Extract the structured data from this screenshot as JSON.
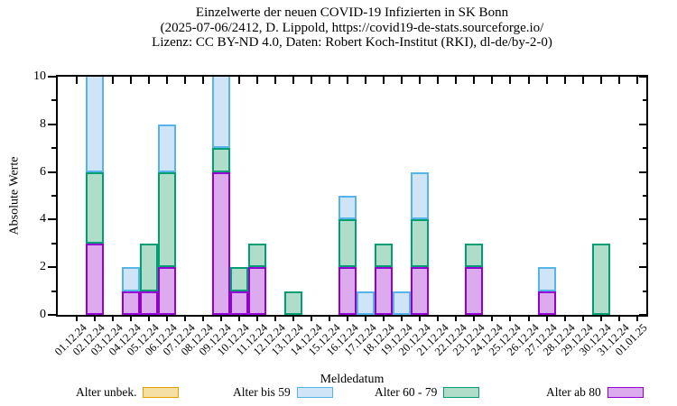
{
  "title": {
    "line1": "Einzelwerte der neuen COVID-19 Infizierten in SK Bonn",
    "line2": "(2025-07-06/2412, D. Lippold, https://covid19-de-stats.sourceforge.io/",
    "line3": "Lizenz: CC BY-ND 4.0, Daten: Robert Koch-Institut (RKI), dl-de/by-2-0)"
  },
  "chart_data": {
    "type": "bar",
    "stacked": true,
    "title": "Einzelwerte der neuen COVID-19 Infizierten in SK Bonn",
    "xlabel": "Meldedatum",
    "ylabel": "Absolute Werte",
    "ylim": [
      0,
      10
    ],
    "y_major_ticks": [
      0,
      2,
      4,
      6,
      8,
      10
    ],
    "y_minor_ticks": [
      1,
      3,
      5,
      7,
      9
    ],
    "grid": false,
    "legend_position": "bottom",
    "categories": [
      "01.12.24",
      "02.12.24",
      "03.12.24",
      "04.12.24",
      "05.12.24",
      "06.12.24",
      "07.12.24",
      "08.12.24",
      "09.12.24",
      "10.12.24",
      "11.12.24",
      "12.12.24",
      "13.12.24",
      "14.12.24",
      "15.12.24",
      "16.12.24",
      "17.12.24",
      "18.12.24",
      "19.12.24",
      "20.12.24",
      "21.12.24",
      "22.12.24",
      "23.12.24",
      "24.12.24",
      "25.12.24",
      "26.12.24",
      "27.12.24",
      "28.12.24",
      "29.12.24",
      "30.12.24",
      "31.12.24",
      "01.01.25"
    ],
    "series": [
      {
        "name": "Alter unbek.",
        "border": "#e69f00",
        "fill": "#f5dfa4",
        "values": [
          0,
          0,
          0,
          0,
          0,
          0,
          0,
          0,
          0,
          0,
          0,
          0,
          0,
          0,
          0,
          0,
          0,
          0,
          0,
          0,
          0,
          0,
          0,
          0,
          0,
          0,
          0,
          0,
          0,
          0,
          0,
          0
        ]
      },
      {
        "name": "Alter bis 59",
        "border": "#56b4e9",
        "fill": "#cfe4f6",
        "values": [
          0,
          4,
          0,
          1,
          0,
          2,
          0,
          0,
          3,
          0,
          0,
          0,
          0,
          0,
          0,
          1,
          1,
          0,
          1,
          2,
          0,
          0,
          0,
          0,
          0,
          0,
          1,
          0,
          0,
          0,
          0,
          0
        ]
      },
      {
        "name": "Alter 60 - 79",
        "border": "#009e73",
        "fill": "#b0dcca",
        "values": [
          0,
          3,
          0,
          0,
          2,
          4,
          0,
          0,
          1,
          1,
          1,
          0,
          1,
          0,
          0,
          2,
          0,
          1,
          0,
          2,
          0,
          0,
          1,
          0,
          0,
          0,
          0,
          0,
          0,
          3,
          0,
          0
        ]
      },
      {
        "name": "Alter ab 80",
        "border": "#9400d3",
        "fill": "#dcabee",
        "values": [
          0,
          3,
          0,
          1,
          1,
          2,
          0,
          0,
          6,
          1,
          2,
          0,
          0,
          0,
          0,
          2,
          0,
          2,
          0,
          2,
          0,
          0,
          2,
          0,
          0,
          0,
          1,
          0,
          0,
          0,
          0,
          0
        ]
      }
    ],
    "stack_order_bottom_to_top": [
      "Alter ab 80",
      "Alter 60 - 79",
      "Alter bis 59",
      "Alter unbek."
    ],
    "notes": "Stacked bars on 02.12.24 and 09.12.24 reach the y-axis maximum of 10 (clipped at top border)."
  },
  "axis": {
    "color": "#000000",
    "background": "#ffffff"
  }
}
